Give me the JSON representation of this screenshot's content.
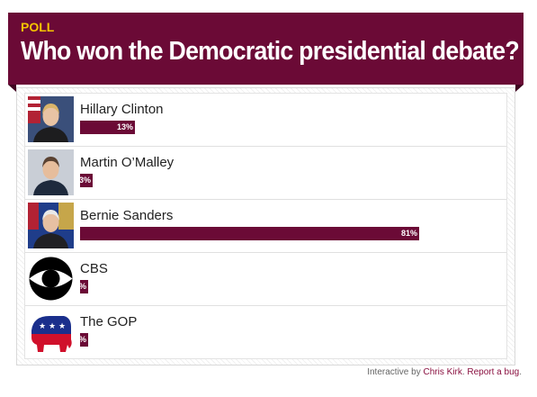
{
  "header": {
    "tag": "POLL",
    "title": "Who won the Democratic presidential debate?"
  },
  "colors": {
    "brand": "#6b0a36",
    "tag": "#f5c400"
  },
  "chart_data": {
    "type": "bar",
    "orientation": "horizontal",
    "categories": [
      "Hillary Clinton",
      "Martin O’Malley",
      "Bernie Sanders",
      "CBS",
      "The GOP"
    ],
    "values": [
      13,
      3,
      81,
      1,
      2
    ],
    "value_labels": [
      "13%",
      "3%",
      "81%",
      "1%",
      "2%"
    ],
    "icons": [
      "hillary-clinton-photo",
      "martin-omalley-photo",
      "bernie-sanders-photo",
      "cbs-eye-logo",
      "gop-elephant-logo"
    ],
    "xlim": [
      0,
      100
    ]
  },
  "footer": {
    "prefix": "Interactive by ",
    "author": "Chris Kirk",
    "separator": ". ",
    "report": "Report a bug",
    "suffix": "."
  }
}
